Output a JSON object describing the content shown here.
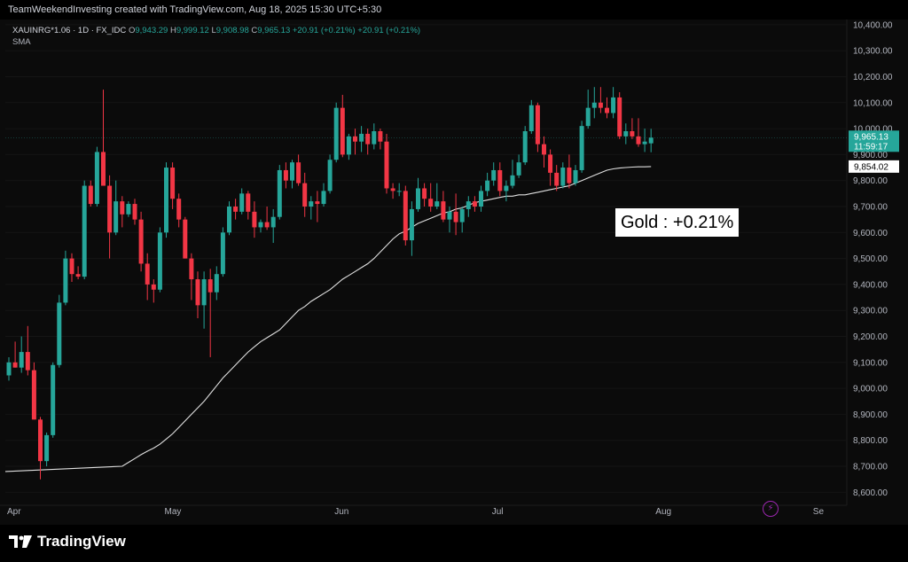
{
  "header": {
    "attribution": "TeamWeekendInvesting created with TradingView.com, Aug 18, 2025 15:30 UTC+5:30"
  },
  "legend": {
    "symbol": "XAUINRG*1.06 · 1D · FX_IDC",
    "open_label": "O",
    "open": "9,943.29",
    "high_label": "H",
    "high": "9,999.12",
    "low_label": "L",
    "low": "9,908.98",
    "close_label": "C",
    "close": "9,965.13",
    "change": "+20.91 (+0.21%)",
    "change2": "+20.91 (+0.21%)",
    "indicator": "SMA"
  },
  "annotation": "Gold : +0.21%",
  "price_tags": {
    "last_price": "9,965.13",
    "countdown": "11:59:17",
    "sma_value": "9,854.02",
    "last_color": "#26a69a"
  },
  "footer": {
    "brand": "TradingView"
  },
  "icons": {
    "alert": "lightning-icon",
    "logo": "tradingview-logo-icon"
  },
  "colors": {
    "up": "#26a69a",
    "down": "#f23645",
    "sma": "#e0e0e0",
    "axis_text": "#b2b5be"
  },
  "chart_data": {
    "type": "candlestick",
    "y_axis": {
      "min": 8550,
      "max": 10420,
      "ticks": [
        8600,
        8700,
        8800,
        8900,
        9000,
        9100,
        9200,
        9300,
        9400,
        9500,
        9600,
        9700,
        9800,
        9900,
        10000,
        10100,
        10200,
        10300,
        10400
      ],
      "tick_labels": [
        "8,600.00",
        "8,700.00",
        "8,800.00",
        "8,900.00",
        "9,000.00",
        "9,100.00",
        "9,200.00",
        "9,300.00",
        "9,400.00",
        "9,500.00",
        "9,600.00",
        "9,700.00",
        "9,800.00",
        "9,900.00",
        "10,000.00",
        "10,100.00",
        "10,200.00",
        "10,300.00",
        "10,400.00"
      ],
      "position": "right"
    },
    "x_axis": {
      "labels": [
        {
          "text": "Apr",
          "index": 0
        },
        {
          "text": "May",
          "index": 25
        },
        {
          "text": "Jun",
          "index": 52
        },
        {
          "text": "Jul",
          "index": 77
        },
        {
          "text": "Aug",
          "index": 103
        },
        {
          "text": "Se",
          "index": 128
        }
      ]
    },
    "candles": [
      {
        "o": 9050,
        "h": 9120,
        "l": 9030,
        "c": 9100
      },
      {
        "o": 9100,
        "h": 9180,
        "l": 9080,
        "c": 9080
      },
      {
        "o": 9080,
        "h": 9200,
        "l": 9060,
        "c": 9140
      },
      {
        "o": 9140,
        "h": 9240,
        "l": 9050,
        "c": 9070
      },
      {
        "o": 9070,
        "h": 9100,
        "l": 8880,
        "c": 8880
      },
      {
        "o": 8880,
        "h": 8890,
        "l": 8650,
        "c": 8720
      },
      {
        "o": 8720,
        "h": 8830,
        "l": 8700,
        "c": 8820
      },
      {
        "o": 8820,
        "h": 9100,
        "l": 8810,
        "c": 9090
      },
      {
        "o": 9090,
        "h": 9360,
        "l": 9080,
        "c": 9330
      },
      {
        "o": 9330,
        "h": 9530,
        "l": 9320,
        "c": 9500
      },
      {
        "o": 9500,
        "h": 9520,
        "l": 9410,
        "c": 9440
      },
      {
        "o": 9440,
        "h": 9470,
        "l": 9420,
        "c": 9430
      },
      {
        "o": 9430,
        "h": 9800,
        "l": 9420,
        "c": 9780
      },
      {
        "o": 9780,
        "h": 9800,
        "l": 9700,
        "c": 9710
      },
      {
        "o": 9710,
        "h": 9930,
        "l": 9700,
        "c": 9910
      },
      {
        "o": 9910,
        "h": 10150,
        "l": 9790,
        "c": 9780
      },
      {
        "o": 9780,
        "h": 9820,
        "l": 9500,
        "c": 9600
      },
      {
        "o": 9600,
        "h": 9800,
        "l": 9590,
        "c": 9720
      },
      {
        "o": 9720,
        "h": 9740,
        "l": 9620,
        "c": 9670
      },
      {
        "o": 9670,
        "h": 9720,
        "l": 9660,
        "c": 9710
      },
      {
        "o": 9710,
        "h": 9730,
        "l": 9630,
        "c": 9650
      },
      {
        "o": 9650,
        "h": 9680,
        "l": 9450,
        "c": 9480
      },
      {
        "o": 9480,
        "h": 9520,
        "l": 9340,
        "c": 9400
      },
      {
        "o": 9400,
        "h": 9420,
        "l": 9330,
        "c": 9380
      },
      {
        "o": 9380,
        "h": 9620,
        "l": 9370,
        "c": 9600
      },
      {
        "o": 9600,
        "h": 9870,
        "l": 9580,
        "c": 9850
      },
      {
        "o": 9850,
        "h": 9870,
        "l": 9690,
        "c": 9730
      },
      {
        "o": 9730,
        "h": 9750,
        "l": 9620,
        "c": 9650
      },
      {
        "o": 9650,
        "h": 9660,
        "l": 9500,
        "c": 9500
      },
      {
        "o": 9500,
        "h": 9520,
        "l": 9340,
        "c": 9420
      },
      {
        "o": 9420,
        "h": 9450,
        "l": 9270,
        "c": 9320
      },
      {
        "o": 9320,
        "h": 9450,
        "l": 9230,
        "c": 9420
      },
      {
        "o": 9420,
        "h": 9460,
        "l": 9120,
        "c": 9370
      },
      {
        "o": 9370,
        "h": 9470,
        "l": 9340,
        "c": 9440
      },
      {
        "o": 9440,
        "h": 9620,
        "l": 9430,
        "c": 9600
      },
      {
        "o": 9600,
        "h": 9720,
        "l": 9590,
        "c": 9700
      },
      {
        "o": 9700,
        "h": 9730,
        "l": 9650,
        "c": 9680
      },
      {
        "o": 9680,
        "h": 9770,
        "l": 9670,
        "c": 9750
      },
      {
        "o": 9750,
        "h": 9760,
        "l": 9650,
        "c": 9680
      },
      {
        "o": 9680,
        "h": 9720,
        "l": 9580,
        "c": 9620
      },
      {
        "o": 9620,
        "h": 9650,
        "l": 9600,
        "c": 9640
      },
      {
        "o": 9640,
        "h": 9700,
        "l": 9610,
        "c": 9620
      },
      {
        "o": 9620,
        "h": 9690,
        "l": 9560,
        "c": 9660
      },
      {
        "o": 9660,
        "h": 9860,
        "l": 9650,
        "c": 9840
      },
      {
        "o": 9840,
        "h": 9870,
        "l": 9770,
        "c": 9800
      },
      {
        "o": 9800,
        "h": 9880,
        "l": 9770,
        "c": 9870
      },
      {
        "o": 9870,
        "h": 9900,
        "l": 9780,
        "c": 9790
      },
      {
        "o": 9790,
        "h": 9830,
        "l": 9660,
        "c": 9700
      },
      {
        "o": 9700,
        "h": 9740,
        "l": 9650,
        "c": 9720
      },
      {
        "o": 9720,
        "h": 9760,
        "l": 9640,
        "c": 9710
      },
      {
        "o": 9710,
        "h": 9790,
        "l": 9700,
        "c": 9760
      },
      {
        "o": 9760,
        "h": 9900,
        "l": 9750,
        "c": 9880
      },
      {
        "o": 9880,
        "h": 10100,
        "l": 9870,
        "c": 10080
      },
      {
        "o": 10080,
        "h": 10130,
        "l": 9890,
        "c": 9900
      },
      {
        "o": 9900,
        "h": 9980,
        "l": 9880,
        "c": 9970
      },
      {
        "o": 9970,
        "h": 10000,
        "l": 9900,
        "c": 9950
      },
      {
        "o": 9950,
        "h": 10010,
        "l": 9910,
        "c": 9980
      },
      {
        "o": 9980,
        "h": 10000,
        "l": 9900,
        "c": 9940
      },
      {
        "o": 9940,
        "h": 10020,
        "l": 9920,
        "c": 9990
      },
      {
        "o": 9990,
        "h": 10000,
        "l": 9920,
        "c": 9950
      },
      {
        "o": 9950,
        "h": 9980,
        "l": 9750,
        "c": 9770
      },
      {
        "o": 9770,
        "h": 9790,
        "l": 9730,
        "c": 9760
      },
      {
        "o": 9760,
        "h": 9790,
        "l": 9740,
        "c": 9760
      },
      {
        "o": 9760,
        "h": 9780,
        "l": 9550,
        "c": 9570
      },
      {
        "o": 9570,
        "h": 9720,
        "l": 9510,
        "c": 9690
      },
      {
        "o": 9690,
        "h": 9810,
        "l": 9680,
        "c": 9770
      },
      {
        "o": 9770,
        "h": 9790,
        "l": 9700,
        "c": 9730
      },
      {
        "o": 9730,
        "h": 9790,
        "l": 9680,
        "c": 9700
      },
      {
        "o": 9700,
        "h": 9790,
        "l": 9690,
        "c": 9720
      },
      {
        "o": 9720,
        "h": 9760,
        "l": 9640,
        "c": 9650
      },
      {
        "o": 9650,
        "h": 9700,
        "l": 9600,
        "c": 9680
      },
      {
        "o": 9680,
        "h": 9750,
        "l": 9590,
        "c": 9640
      },
      {
        "o": 9640,
        "h": 9700,
        "l": 9600,
        "c": 9690
      },
      {
        "o": 9690,
        "h": 9740,
        "l": 9660,
        "c": 9720
      },
      {
        "o": 9720,
        "h": 9740,
        "l": 9680,
        "c": 9700
      },
      {
        "o": 9700,
        "h": 9780,
        "l": 9680,
        "c": 9760
      },
      {
        "o": 9760,
        "h": 9830,
        "l": 9740,
        "c": 9800
      },
      {
        "o": 9800,
        "h": 9870,
        "l": 9780,
        "c": 9840
      },
      {
        "o": 9840,
        "h": 9870,
        "l": 9740,
        "c": 9760
      },
      {
        "o": 9760,
        "h": 9800,
        "l": 9720,
        "c": 9780
      },
      {
        "o": 9780,
        "h": 9880,
        "l": 9770,
        "c": 9820
      },
      {
        "o": 9820,
        "h": 9900,
        "l": 9810,
        "c": 9870
      },
      {
        "o": 9870,
        "h": 10010,
        "l": 9860,
        "c": 9990
      },
      {
        "o": 9990,
        "h": 10110,
        "l": 9980,
        "c": 10090
      },
      {
        "o": 10090,
        "h": 10100,
        "l": 9910,
        "c": 9940
      },
      {
        "o": 9940,
        "h": 9970,
        "l": 9850,
        "c": 9900
      },
      {
        "o": 9900,
        "h": 9920,
        "l": 9780,
        "c": 9830
      },
      {
        "o": 9830,
        "h": 9860,
        "l": 9760,
        "c": 9780
      },
      {
        "o": 9780,
        "h": 9870,
        "l": 9770,
        "c": 9850
      },
      {
        "o": 9850,
        "h": 9900,
        "l": 9770,
        "c": 9790
      },
      {
        "o": 9790,
        "h": 9860,
        "l": 9780,
        "c": 9840
      },
      {
        "o": 9840,
        "h": 10030,
        "l": 9830,
        "c": 10010
      },
      {
        "o": 10010,
        "h": 10150,
        "l": 10000,
        "c": 10080
      },
      {
        "o": 10080,
        "h": 10160,
        "l": 10040,
        "c": 10100
      },
      {
        "o": 10100,
        "h": 10160,
        "l": 10060,
        "c": 10080
      },
      {
        "o": 10080,
        "h": 10120,
        "l": 10040,
        "c": 10060
      },
      {
        "o": 10060,
        "h": 10160,
        "l": 10040,
        "c": 10120
      },
      {
        "o": 10120,
        "h": 10140,
        "l": 9960,
        "c": 9970
      },
      {
        "o": 9970,
        "h": 10020,
        "l": 9940,
        "c": 9990
      },
      {
        "o": 9990,
        "h": 10040,
        "l": 9960,
        "c": 9970
      },
      {
        "o": 9970,
        "h": 10040,
        "l": 9930,
        "c": 9940
      },
      {
        "o": 9940,
        "h": 10000,
        "l": 9910,
        "c": 9950
      },
      {
        "o": 9943.29,
        "h": 9999.12,
        "l": 9908.98,
        "c": 9965.13
      }
    ],
    "sma": [
      8700,
      8715,
      8730,
      8745,
      8758,
      8770,
      8785,
      8805,
      8825,
      8850,
      8875,
      8900,
      8925,
      8950,
      8980,
      9010,
      9040,
      9065,
      9090,
      9115,
      9140,
      9160,
      9180,
      9195,
      9210,
      9225,
      9250,
      9275,
      9300,
      9315,
      9335,
      9350,
      9365,
      9380,
      9400,
      9420,
      9435,
      9450,
      9465,
      9480,
      9500,
      9525,
      9550,
      9575,
      9595,
      9605,
      9620,
      9635,
      9645,
      9655,
      9665,
      9675,
      9680,
      9690,
      9695,
      9705,
      9715,
      9720,
      9725,
      9730,
      9735,
      9740,
      9740,
      9745,
      9745,
      9750,
      9755,
      9760,
      9765,
      9770,
      9775,
      9780,
      9790,
      9800,
      9810,
      9820,
      9830,
      9840,
      9845,
      9848,
      9850,
      9852,
      9853,
      9853,
      9854.02
    ]
  }
}
